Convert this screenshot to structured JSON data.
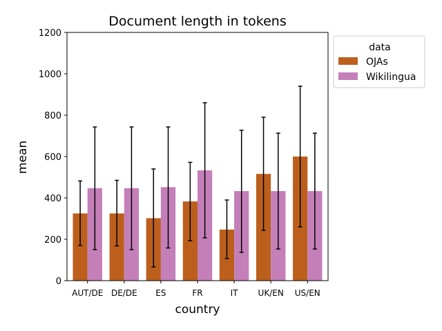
{
  "chart_data": {
    "type": "bar",
    "title": "Document length in tokens",
    "xlabel": "country",
    "ylabel": "mean",
    "ylim": [
      0,
      1200
    ],
    "yticks": [
      0,
      200,
      400,
      600,
      800,
      1000,
      1200
    ],
    "categories": [
      "AUT/DE",
      "DE/DE",
      "ES",
      "FR",
      "IT",
      "UK/EN",
      "US/EN"
    ],
    "legend": {
      "title": "data",
      "placement": "upper-right-outside"
    },
    "grid": false,
    "series": [
      {
        "name": "OJAs",
        "color": "#bc5f1d",
        "values": [
          325,
          325,
          302,
          383,
          247,
          516,
          600
        ],
        "err_low": [
          170,
          168,
          66,
          193,
          107,
          243,
          260
        ],
        "err_high": [
          482,
          485,
          540,
          572,
          390,
          790,
          940
        ]
      },
      {
        "name": "Wikilingua",
        "color": "#c47fb9",
        "values": [
          447,
          447,
          452,
          533,
          433,
          433,
          433
        ],
        "err_low": [
          150,
          150,
          158,
          207,
          137,
          153,
          153
        ],
        "err_high": [
          743,
          743,
          743,
          860,
          727,
          713,
          713
        ]
      }
    ]
  }
}
